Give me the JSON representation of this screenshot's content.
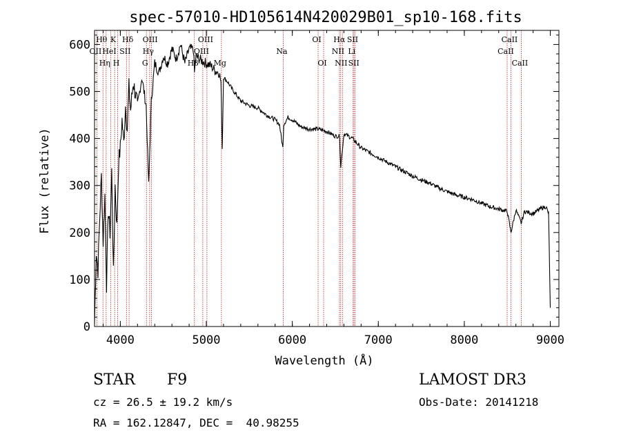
{
  "chart_data": {
    "type": "line",
    "title": "spec-57010-HD105614N420029B01_sp10-168.fits",
    "xlabel": "Wavelength (Å)",
    "ylabel": "Flux (relative)",
    "xlim": [
      3700,
      9100
    ],
    "ylim": [
      0,
      630
    ],
    "x_ticks": [
      4000,
      5000,
      6000,
      7000,
      8000,
      9000
    ],
    "y_ticks": [
      0,
      100,
      200,
      300,
      400,
      500,
      600
    ],
    "grid": false,
    "series": [
      {
        "name": "flux",
        "x": [
          3700,
          3720,
          3740,
          3760,
          3780,
          3800,
          3820,
          3840,
          3860,
          3880,
          3900,
          3920,
          3940,
          3960,
          3980,
          4000,
          4020,
          4040,
          4060,
          4080,
          4100,
          4120,
          4150,
          4200,
          4250,
          4300,
          4330,
          4360,
          4400,
          4450,
          4500,
          4550,
          4600,
          4650,
          4700,
          4750,
          4800,
          4850,
          4862,
          4880,
          4950,
          5000,
          5050,
          5100,
          5150,
          5170,
          5185,
          5200,
          5250,
          5300,
          5400,
          5500,
          5600,
          5700,
          5800,
          5850,
          5890,
          5900,
          5950,
          6000,
          6100,
          6200,
          6300,
          6400,
          6500,
          6550,
          6563,
          6600,
          6700,
          6800,
          6900,
          7000,
          7100,
          7200,
          7300,
          7400,
          7500,
          7600,
          7700,
          7800,
          7900,
          8000,
          8100,
          8200,
          8300,
          8400,
          8500,
          8542,
          8600,
          8662,
          8700,
          8800,
          8900,
          8950,
          8980,
          9000
        ],
        "y": [
          5,
          160,
          120,
          230,
          320,
          180,
          280,
          90,
          250,
          200,
          330,
          110,
          300,
          210,
          350,
          380,
          440,
          390,
          470,
          420,
          510,
          460,
          520,
          470,
          530,
          470,
          300,
          480,
          560,
          540,
          575,
          560,
          590,
          570,
          600,
          560,
          590,
          590,
          540,
          575,
          565,
          560,
          555,
          545,
          540,
          520,
          380,
          530,
          520,
          505,
          480,
          470,
          465,
          450,
          440,
          430,
          380,
          430,
          445,
          440,
          425,
          420,
          420,
          415,
          405,
          405,
          340,
          410,
          400,
          380,
          370,
          360,
          350,
          340,
          330,
          320,
          312,
          305,
          295,
          287,
          280,
          275,
          270,
          262,
          255,
          250,
          245,
          200,
          248,
          220,
          245,
          240,
          252,
          255,
          240,
          40
        ]
      }
    ],
    "lines": [
      {
        "wl": 3727,
        "labels": [
          "OII"
        ],
        "rows": [
          1
        ]
      },
      {
        "wl": 3798,
        "labels": [
          "Hθ"
        ],
        "rows": [
          0
        ]
      },
      {
        "wl": 3835,
        "labels": [
          "Hη"
        ],
        "rows": [
          2
        ]
      },
      {
        "wl": 3889,
        "labels": [
          "HeI"
        ],
        "rows": [
          1
        ]
      },
      {
        "wl": 3934,
        "labels": [
          "K"
        ],
        "rows": [
          0
        ]
      },
      {
        "wl": 3969,
        "labels": [
          "H"
        ],
        "rows": [
          2
        ]
      },
      {
        "wl": 4072,
        "labels": [
          "SII"
        ],
        "rows": [
          1
        ]
      },
      {
        "wl": 4102,
        "labels": [
          "Hδ"
        ],
        "rows": [
          0
        ]
      },
      {
        "wl": 4304,
        "labels": [
          "G"
        ],
        "rows": [
          2
        ]
      },
      {
        "wl": 4341,
        "labels": [
          "Hγ"
        ],
        "rows": [
          1
        ]
      },
      {
        "wl": 4363,
        "labels": [
          "OIII"
        ],
        "rows": [
          0
        ]
      },
      {
        "wl": 4861,
        "labels": [
          "Hβ"
        ],
        "rows": [
          2
        ]
      },
      {
        "wl": 4959,
        "labels": [
          "OIII"
        ],
        "rows": [
          1
        ]
      },
      {
        "wl": 5007,
        "labels": [
          "OIII"
        ],
        "rows": [
          0
        ]
      },
      {
        "wl": 5175,
        "labels": [
          "Mg"
        ],
        "rows": [
          2
        ]
      },
      {
        "wl": 5894,
        "labels": [
          "Na"
        ],
        "rows": [
          1
        ]
      },
      {
        "wl": 6300,
        "labels": [
          "OI"
        ],
        "rows": [
          0
        ]
      },
      {
        "wl": 6364,
        "labels": [
          "OI"
        ],
        "rows": [
          2
        ]
      },
      {
        "wl": 6548,
        "labels": [
          "NII"
        ],
        "rows": [
          1
        ]
      },
      {
        "wl": 6563,
        "labels": [
          "Hα"
        ],
        "rows": [
          0
        ]
      },
      {
        "wl": 6583,
        "labels": [
          "NII"
        ],
        "rows": [
          2
        ]
      },
      {
        "wl": 6707,
        "labels": [
          "Li"
        ],
        "rows": [
          1
        ]
      },
      {
        "wl": 6717,
        "labels": [
          "SII"
        ],
        "rows": [
          0
        ]
      },
      {
        "wl": 6731,
        "labels": [
          "SII"
        ],
        "rows": [
          2
        ]
      },
      {
        "wl": 8498,
        "labels": [
          "CaII"
        ],
        "rows": [
          1
        ]
      },
      {
        "wl": 8542,
        "labels": [
          "CaII"
        ],
        "rows": [
          0
        ]
      },
      {
        "wl": 8662,
        "labels": [
          "CaII"
        ],
        "rows": [
          2
        ]
      }
    ]
  },
  "info": {
    "object_class": "STAR",
    "subclass": "F9",
    "survey": "LAMOST DR3",
    "cz": "cz = 26.5 ± 19.2 km/s",
    "obs_date": "Obs-Date: 20141218",
    "coords": "RA = 162.12847, DEC =  40.98255"
  },
  "colors": {
    "line_marker": "#b22222",
    "spectrum": "#000000"
  }
}
